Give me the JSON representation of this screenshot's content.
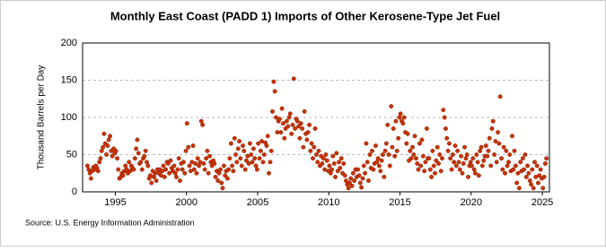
{
  "chart_data": {
    "type": "scatter",
    "title": "Monthly East Coast (PADD 1) Imports of Other Kerosene-Type Jet Fuel",
    "y_label": "Thousand Barrels per Day",
    "source": "Source: U.S. Energy Information Administration",
    "xlim": [
      1992.7,
      2025.5
    ],
    "xticks": [
      1995,
      2000,
      2005,
      2010,
      2015,
      2020,
      2025
    ],
    "ylim": [
      0,
      200
    ],
    "yticks": [
      0,
      50,
      100,
      150,
      200
    ],
    "grid": true,
    "x": [
      1993.04,
      1993.13,
      1993.21,
      1993.29,
      1993.38,
      1993.46,
      1993.54,
      1993.63,
      1993.71,
      1993.79,
      1993.88,
      1993.96,
      1994.04,
      1994.13,
      1994.21,
      1994.29,
      1994.38,
      1994.46,
      1994.54,
      1994.63,
      1994.71,
      1994.79,
      1994.88,
      1994.96,
      1995.04,
      1995.13,
      1995.21,
      1995.29,
      1995.38,
      1995.46,
      1995.54,
      1995.63,
      1995.71,
      1995.79,
      1995.88,
      1995.96,
      1996.04,
      1996.13,
      1996.21,
      1996.29,
      1996.38,
      1996.46,
      1996.54,
      1996.63,
      1996.71,
      1996.79,
      1996.88,
      1996.96,
      1997.04,
      1997.13,
      1997.21,
      1997.29,
      1997.38,
      1997.46,
      1997.54,
      1997.63,
      1997.71,
      1997.79,
      1997.88,
      1997.96,
      1998.04,
      1998.13,
      1998.21,
      1998.29,
      1998.38,
      1998.46,
      1998.54,
      1998.63,
      1998.71,
      1998.79,
      1998.88,
      1998.96,
      1999.04,
      1999.13,
      1999.21,
      1999.29,
      1999.38,
      1999.46,
      1999.54,
      1999.63,
      1999.71,
      1999.79,
      1999.88,
      1999.96,
      2000.04,
      2000.13,
      2000.21,
      2000.29,
      2000.38,
      2000.46,
      2000.54,
      2000.63,
      2000.71,
      2000.79,
      2000.88,
      2000.96,
      2001.04,
      2001.13,
      2001.21,
      2001.29,
      2001.38,
      2001.46,
      2001.54,
      2001.63,
      2001.71,
      2001.79,
      2001.88,
      2001.96,
      2002.04,
      2002.13,
      2002.21,
      2002.29,
      2002.38,
      2002.46,
      2002.54,
      2002.63,
      2002.71,
      2002.79,
      2002.88,
      2002.96,
      2003.04,
      2003.13,
      2003.21,
      2003.29,
      2003.38,
      2003.46,
      2003.54,
      2003.63,
      2003.71,
      2003.79,
      2003.88,
      2003.96,
      2004.04,
      2004.13,
      2004.21,
      2004.29,
      2004.38,
      2004.46,
      2004.54,
      2004.63,
      2004.71,
      2004.79,
      2004.88,
      2004.96,
      2005.04,
      2005.13,
      2005.21,
      2005.29,
      2005.38,
      2005.46,
      2005.54,
      2005.63,
      2005.71,
      2005.79,
      2005.88,
      2005.96,
      2006.04,
      2006.13,
      2006.21,
      2006.29,
      2006.38,
      2006.46,
      2006.54,
      2006.63,
      2006.71,
      2006.79,
      2006.88,
      2006.96,
      2007.04,
      2007.13,
      2007.21,
      2007.29,
      2007.38,
      2007.46,
      2007.54,
      2007.63,
      2007.71,
      2007.79,
      2007.88,
      2007.96,
      2008.04,
      2008.13,
      2008.21,
      2008.29,
      2008.38,
      2008.46,
      2008.54,
      2008.63,
      2008.71,
      2008.79,
      2008.88,
      2008.96,
      2009.04,
      2009.13,
      2009.21,
      2009.29,
      2009.38,
      2009.46,
      2009.54,
      2009.63,
      2009.71,
      2009.79,
      2009.88,
      2009.96,
      2010.04,
      2010.13,
      2010.21,
      2010.29,
      2010.38,
      2010.46,
      2010.54,
      2010.63,
      2010.71,
      2010.79,
      2010.88,
      2010.96,
      2011.04,
      2011.13,
      2011.21,
      2011.29,
      2011.38,
      2011.46,
      2011.54,
      2011.63,
      2011.71,
      2011.79,
      2011.88,
      2011.96,
      2012.04,
      2012.13,
      2012.21,
      2012.29,
      2012.38,
      2012.46,
      2012.54,
      2012.63,
      2012.71,
      2012.79,
      2012.88,
      2012.96,
      2013.04,
      2013.13,
      2013.21,
      2013.29,
      2013.38,
      2013.46,
      2013.54,
      2013.63,
      2013.71,
      2013.79,
      2013.88,
      2013.96,
      2014.04,
      2014.13,
      2014.21,
      2014.29,
      2014.38,
      2014.46,
      2014.54,
      2014.63,
      2014.71,
      2014.79,
      2014.88,
      2014.96,
      2015.04,
      2015.13,
      2015.21,
      2015.29,
      2015.38,
      2015.46,
      2015.54,
      2015.63,
      2015.71,
      2015.79,
      2015.88,
      2015.96,
      2016.04,
      2016.13,
      2016.21,
      2016.29,
      2016.38,
      2016.46,
      2016.54,
      2016.63,
      2016.71,
      2016.79,
      2016.88,
      2016.96,
      2017.04,
      2017.13,
      2017.21,
      2017.29,
      2017.38,
      2017.46,
      2017.54,
      2017.63,
      2017.71,
      2017.79,
      2017.88,
      2017.96,
      2018.04,
      2018.13,
      2018.21,
      2018.29,
      2018.38,
      2018.46,
      2018.54,
      2018.63,
      2018.71,
      2018.79,
      2018.88,
      2018.96,
      2019.04,
      2019.13,
      2019.21,
      2019.29,
      2019.38,
      2019.46,
      2019.54,
      2019.63,
      2019.71,
      2019.79,
      2019.88,
      2019.96,
      2020.04,
      2020.13,
      2020.21,
      2020.29,
      2020.38,
      2020.46,
      2020.54,
      2020.63,
      2020.71,
      2020.79,
      2020.88,
      2020.96,
      2021.04,
      2021.13,
      2021.21,
      2021.29,
      2021.38,
      2021.46,
      2021.54,
      2021.63,
      2021.71,
      2021.79,
      2021.88,
      2021.96,
      2022.04,
      2022.13,
      2022.21,
      2022.29,
      2022.38,
      2022.46,
      2022.54,
      2022.63,
      2022.71,
      2022.79,
      2022.88,
      2022.96,
      2023.04,
      2023.13,
      2023.21,
      2023.29,
      2023.38,
      2023.46,
      2023.54,
      2023.63,
      2023.71,
      2023.79,
      2023.88,
      2023.96,
      2024.04,
      2024.13,
      2024.21,
      2024.29,
      2024.38,
      2024.46,
      2024.54,
      2024.63,
      2024.71,
      2024.79,
      2024.88,
      2024.96,
      2025.04,
      2025.13,
      2025.21,
      2025.29
    ],
    "series": [
      {
        "color": "#cc3300",
        "values": [
          35,
          30,
          25,
          18,
          28,
          33,
          30,
          35,
          32,
          28,
          40,
          45,
          55,
          60,
          78,
          65,
          50,
          62,
          70,
          75,
          55,
          48,
          58,
          52,
          55,
          45,
          30,
          18,
          20,
          25,
          22,
          28,
          35,
          30,
          25,
          40,
          28,
          35,
          32,
          30,
          45,
          58,
          70,
          52,
          38,
          40,
          30,
          45,
          48,
          55,
          40,
          35,
          18,
          22,
          12,
          28,
          20,
          25,
          15,
          30,
          25,
          30,
          22,
          28,
          35,
          20,
          30,
          40,
          38,
          25,
          42,
          32,
          28,
          35,
          25,
          20,
          30,
          45,
          15,
          38,
          30,
          40,
          25,
          55,
          92,
          60,
          35,
          28,
          40,
          62,
          30,
          38,
          25,
          45,
          35,
          40,
          95,
          90,
          38,
          30,
          45,
          55,
          25,
          48,
          40,
          35,
          42,
          38,
          20,
          28,
          15,
          25,
          30,
          12,
          5,
          35,
          22,
          28,
          18,
          30,
          45,
          65,
          35,
          28,
          72,
          50,
          40,
          58,
          68,
          45,
          35,
          62,
          55,
          30,
          42,
          48,
          38,
          65,
          50,
          40,
          58,
          45,
          35,
          30,
          65,
          45,
          55,
          68,
          40,
          50,
          66,
          62,
          75,
          25,
          40,
          55,
          108,
          148,
          135,
          100,
          80,
          95,
          98,
          80,
          112,
          92,
          72,
          85,
          95,
          88,
          100,
          105,
          78,
          90,
          152,
          85,
          98,
          95,
          88,
          72,
          92,
          85,
          60,
          108,
          78,
          70,
          80,
          90,
          55,
          65,
          45,
          60,
          85,
          50,
          40,
          55,
          35,
          48,
          38,
          45,
          30,
          50,
          42,
          28,
          35,
          25,
          30,
          48,
          38,
          20,
          52,
          28,
          40,
          32,
          45,
          25,
          38,
          22,
          15,
          10,
          5,
          12,
          18,
          8,
          25,
          15,
          30,
          20,
          30,
          22,
          12,
          6,
          18,
          35,
          25,
          65,
          40,
          15,
          50,
          32,
          55,
          30,
          38,
          62,
          40,
          45,
          35,
          28,
          42,
          50,
          20,
          55,
          65,
          90,
          50,
          35,
          115,
          60,
          85,
          48,
          95,
          55,
          72,
          100,
          105,
          95,
          92,
          100,
          80,
          65,
          78,
          42,
          55,
          45,
          60,
          50,
          75,
          45,
          38,
          30,
          65,
          35,
          70,
          48,
          28,
          40,
          85,
          45,
          45,
          30,
          20,
          55,
          35,
          25,
          42,
          60,
          38,
          50,
          28,
          45,
          110,
          100,
          85,
          72,
          55,
          65,
          45,
          30,
          50,
          40,
          62,
          35,
          55,
          40,
          30,
          48,
          25,
          38,
          60,
          45,
          50,
          20,
          35,
          40,
          35,
          45,
          30,
          25,
          50,
          40,
          22,
          55,
          60,
          35,
          42,
          48,
          62,
          48,
          55,
          72,
          35,
          85,
          95,
          50,
          68,
          40,
          80,
          65,
          128,
          45,
          30,
          60,
          25,
          55,
          35,
          40,
          50,
          28,
          75,
          30,
          55,
          35,
          12,
          25,
          5,
          40,
          28,
          45,
          30,
          50,
          20,
          35,
          25,
          15,
          10,
          30,
          5,
          40,
          20,
          35,
          12,
          22,
          30,
          18,
          5,
          20,
          38,
          45
        ]
      }
    ]
  }
}
